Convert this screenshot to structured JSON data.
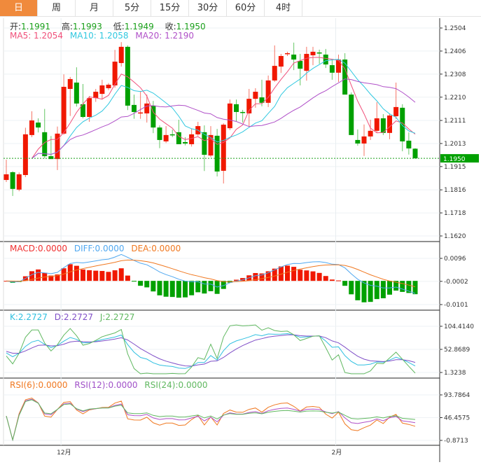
{
  "tabs": [
    "日",
    "周",
    "月",
    "5分",
    "15分",
    "30分",
    "60分",
    "4时"
  ],
  "active_tab": 0,
  "ohlc_legend": {
    "open_label": "开:",
    "open": "1.1991",
    "high_label": "高:",
    "high": "1.1993",
    "low_label": "低:",
    "low": "1.1949",
    "close_label": "收:",
    "close": "1.1950"
  },
  "ma_legend": {
    "ma5": "MA5: 1.2054",
    "ma10": "MA10: 1.2058",
    "ma20": "MA20: 1.2190"
  },
  "macd_legend": {
    "macd": "MACD:0.0000",
    "diff": "DIFF:0.0000",
    "dea": "DEA:0.0000"
  },
  "kdj_legend": {
    "k": "K:2.2727",
    "d": "D:2.2727",
    "j": "J:2.2727"
  },
  "rsi_legend": {
    "rsi6": "RSI(6):0.0000",
    "rsi12": "RSI(12):0.0000",
    "rsi24": "RSI(24):0.0000"
  },
  "colors": {
    "up": "#f01800",
    "down": "#00a000",
    "ma5": "#f0507a",
    "ma10": "#30c8e0",
    "ma20": "#b050c8",
    "diff": "#50a8f0",
    "dea": "#f07820",
    "k": "#30c0e0",
    "d": "#8050c8",
    "j": "#60b860",
    "tab_active": "#f08a3c"
  },
  "chart_data": {
    "type": "candlestick",
    "price_axis": {
      "ticks": [
        "1.2504",
        "1.2406",
        "1.2308",
        "1.2210",
        "1.2111",
        "1.2013",
        "1.1915",
        "1.1816",
        "1.1718",
        "1.1620"
      ],
      "range": [
        1.162,
        1.2504
      ]
    },
    "current_price": "1.1950",
    "x_labels": [
      {
        "label": "12月",
        "index": 9
      },
      {
        "label": "2月",
        "index": 52
      }
    ],
    "candles": [
      [
        1.1858,
        1.1944,
        1.1849,
        1.1882
      ],
      [
        1.1891,
        1.1895,
        1.179,
        1.182
      ],
      [
        1.1817,
        1.189,
        1.181,
        1.1882
      ],
      [
        1.1879,
        1.208,
        1.187,
        1.2052
      ],
      [
        1.2049,
        1.215,
        1.204,
        1.2111
      ],
      [
        1.2102,
        1.212,
        1.206,
        1.2081
      ],
      [
        1.2061,
        1.216,
        1.195,
        1.1959
      ],
      [
        1.1959,
        1.2045,
        1.1947,
        1.1947
      ],
      [
        1.1947,
        1.2085,
        1.19,
        1.2055
      ],
      [
        1.2055,
        1.2307,
        1.205,
        1.2254
      ],
      [
        1.2245,
        1.2296,
        1.213,
        1.2287
      ],
      [
        1.2272,
        1.2337,
        1.217,
        1.2183
      ],
      [
        1.218,
        1.2266,
        1.212,
        1.2126
      ],
      [
        1.2126,
        1.2215,
        1.2105,
        1.2206
      ],
      [
        1.2206,
        1.2245,
        1.219,
        1.2233
      ],
      [
        1.2224,
        1.2284,
        1.22,
        1.226
      ],
      [
        1.2248,
        1.227,
        1.224,
        1.2263
      ],
      [
        1.226,
        1.2411,
        1.225,
        1.2361
      ],
      [
        1.2355,
        1.2444,
        1.234,
        1.2424
      ],
      [
        1.2424,
        1.243,
        1.2155,
        1.2174
      ],
      [
        1.2177,
        1.2221,
        1.2118,
        1.2147
      ],
      [
        1.2144,
        1.2236,
        1.2118,
        1.2145
      ],
      [
        1.2141,
        1.2221,
        1.2102,
        1.2183
      ],
      [
        1.2174,
        1.2194,
        1.2057,
        1.2081
      ],
      [
        1.2081,
        1.209,
        1.1993,
        1.2028
      ],
      [
        1.2022,
        1.2087,
        1.2015,
        1.2049
      ],
      [
        1.2052,
        1.2072,
        1.204,
        1.2049
      ],
      [
        1.2061,
        1.2114,
        1.201,
        1.201
      ],
      [
        1.2019,
        1.204,
        1.2005,
        1.2013
      ],
      [
        1.201,
        1.2075,
        1.2,
        1.2052
      ],
      [
        1.2052,
        1.2105,
        1.2045,
        1.2087
      ],
      [
        1.2061,
        1.209,
        1.1896,
        1.1965
      ],
      [
        1.1962,
        1.2087,
        1.1955,
        1.2049
      ],
      [
        1.2046,
        1.2075,
        1.1873,
        1.1894
      ],
      [
        1.1897,
        1.2099,
        1.1843,
        1.2093
      ],
      [
        1.2078,
        1.22,
        1.207,
        1.2183
      ],
      [
        1.218,
        1.22,
        1.2108,
        1.2147
      ],
      [
        1.2147,
        1.2156,
        1.2102,
        1.2144
      ],
      [
        1.2141,
        1.2245,
        1.2085,
        1.2203
      ],
      [
        1.2203,
        1.2248,
        1.2165,
        1.2233
      ],
      [
        1.2209,
        1.2284,
        1.2171,
        1.2186
      ],
      [
        1.2186,
        1.2302,
        1.2168,
        1.2281
      ],
      [
        1.2281,
        1.243,
        1.2275,
        1.2343
      ],
      [
        1.234,
        1.2394,
        1.2313,
        1.2385
      ],
      [
        1.2394,
        1.2403,
        1.2385,
        1.2397
      ],
      [
        1.2391,
        1.2442,
        1.2325,
        1.237
      ],
      [
        1.2364,
        1.2394,
        1.226,
        1.2331
      ],
      [
        1.2322,
        1.2424,
        1.228,
        1.2394
      ],
      [
        1.2388,
        1.2424,
        1.2346,
        1.2403
      ],
      [
        1.24,
        1.2412,
        1.2352,
        1.2397
      ],
      [
        1.2391,
        1.2415,
        1.2334,
        1.2349
      ],
      [
        1.2346,
        1.237,
        1.2284,
        1.2314
      ],
      [
        1.2314,
        1.2391,
        1.2275,
        1.237
      ],
      [
        1.237,
        1.2397,
        1.2221,
        1.2221
      ],
      [
        1.2221,
        1.223,
        1.2049,
        1.2049
      ],
      [
        1.2028,
        1.2073,
        1.2004,
        1.2013
      ],
      [
        1.2013,
        1.2094,
        1.196,
        1.2043
      ],
      [
        1.2043,
        1.2114,
        1.2028,
        1.2067
      ],
      [
        1.2067,
        1.2189,
        1.2058,
        1.212
      ],
      [
        1.212,
        1.2138,
        1.2049,
        1.2058
      ],
      [
        1.2058,
        1.2141,
        1.2031,
        1.2132
      ],
      [
        1.2129,
        1.2272,
        1.2117,
        1.2168
      ],
      [
        1.2165,
        1.218,
        1.198,
        1.2022
      ],
      [
        1.2025,
        1.206,
        1.1966,
        1.1992
      ],
      [
        1.1991,
        1.1993,
        1.1949,
        1.195
      ]
    ],
    "macd_axis": [
      "0.0096",
      "-0.0002",
      "-0.0101"
    ],
    "kdj_axis": [
      "104.4140",
      "52.8689",
      "1.3238"
    ],
    "rsi_axis": [
      "93.7864",
      "46.4575",
      "-0.8713"
    ]
  }
}
